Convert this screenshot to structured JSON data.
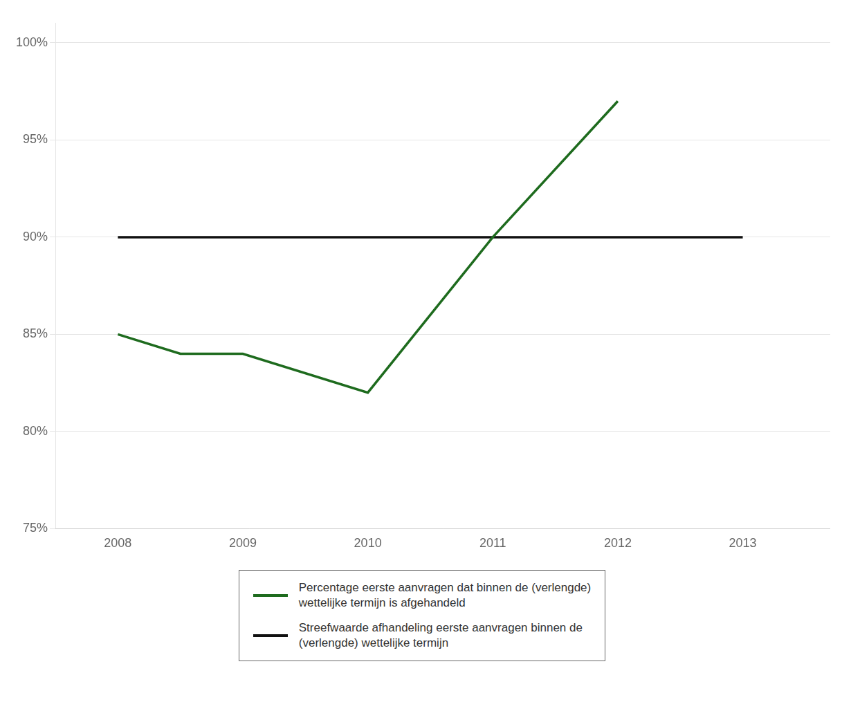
{
  "chart_data": {
    "type": "line",
    "series": [
      {
        "name": "Percentage eerste aanvragen dat binnen de (verlengde)\nwettelijke termijn is afgehandeld",
        "color": "#1e6b1e",
        "x": [
          2008,
          2008.5,
          2009,
          2010,
          2011,
          2012
        ],
        "values": [
          85,
          84,
          84,
          82,
          90,
          97
        ]
      },
      {
        "name": "Streefwaarde afhandeling eerste aanvragen binnen de\n(verlengde) wettelijke termijn",
        "color": "#111111",
        "x": [
          2008,
          2013
        ],
        "values": [
          90,
          90
        ]
      }
    ],
    "xlim": [
      2007.5,
      2013.7
    ],
    "xticks": [
      2008,
      2009,
      2010,
      2011,
      2012,
      2013
    ],
    "ylim": [
      75,
      101
    ],
    "yticks": [
      {
        "value": 75,
        "label": "75%"
      },
      {
        "value": 80,
        "label": "80%"
      },
      {
        "value": 85,
        "label": "85%"
      },
      {
        "value": 90,
        "label": "90%"
      },
      {
        "value": 95,
        "label": "95%"
      },
      {
        "value": 100,
        "label": "100%"
      }
    ],
    "grid": "y",
    "legend": "bottom"
  }
}
